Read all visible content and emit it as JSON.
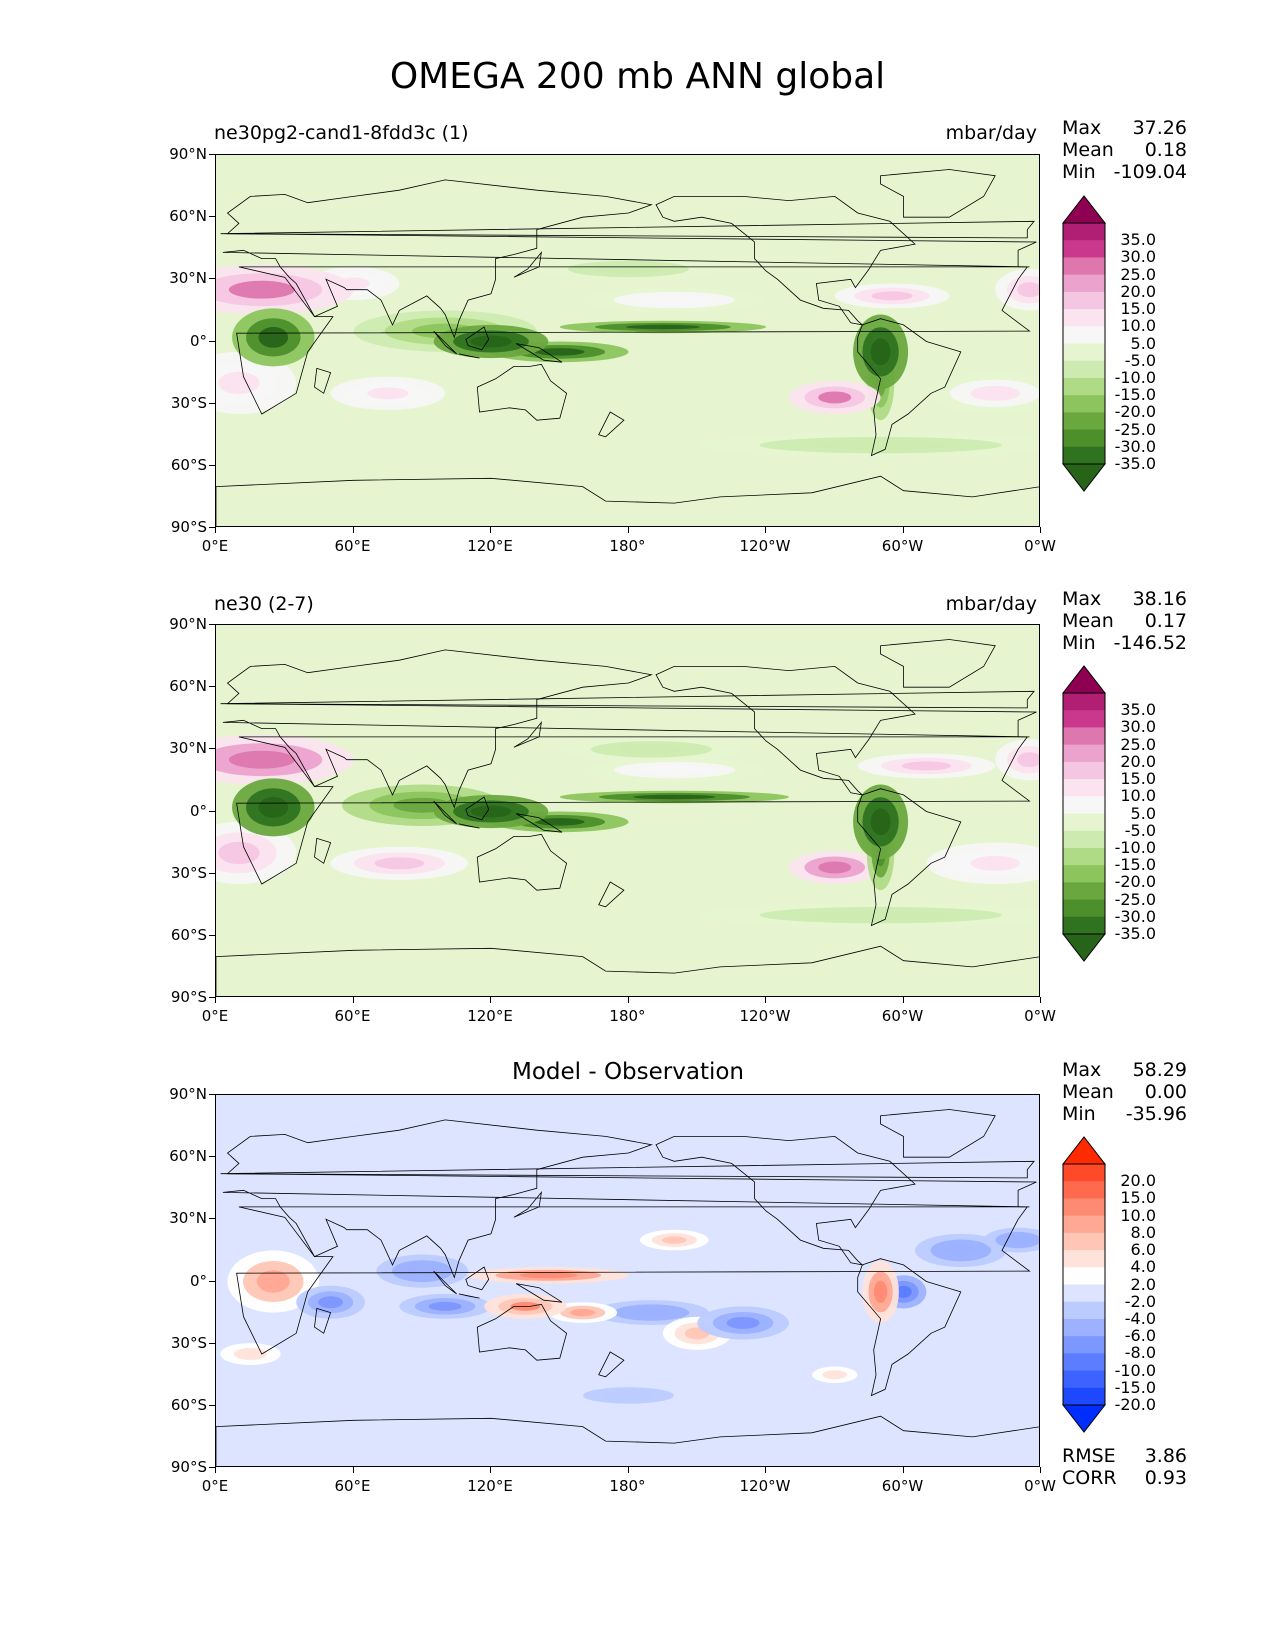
{
  "title": "OMEGA 200 mb ANN global",
  "lat_ticks": [
    "90°N",
    "60°N",
    "30°N",
    "0°",
    "30°S",
    "60°S",
    "90°S"
  ],
  "lon_ticks": [
    "0°E",
    "60°E",
    "120°E",
    "180°",
    "120°W",
    "60°W",
    "0°W"
  ],
  "stat_labels": {
    "max": "Max",
    "mean": "Mean",
    "min": "Min"
  },
  "panels": [
    {
      "title": "ne30pg2-cand1-8fdd3c (1)",
      "units": "mbar/day",
      "stats": {
        "max": "37.26",
        "mean": "0.18",
        "min": "-109.04"
      },
      "colorbar": {
        "ticks": [
          "35.0",
          "30.0",
          "25.0",
          "20.0",
          "15.0",
          "10.0",
          "5.0",
          "-5.0",
          "-10.0",
          "-15.0",
          "-20.0",
          "-25.0",
          "-30.0",
          "-35.0"
        ],
        "colors": [
          "#8e0152",
          "#b11f74",
          "#c9388d",
          "#de77ae",
          "#eba2cc",
          "#f5c6e1",
          "#fbe3ef",
          "#f7f7f7",
          "#e6f5d0",
          "#cdebb0",
          "#b0db86",
          "#8cc55d",
          "#6aa83f",
          "#4d8f2b",
          "#2f7320",
          "#276419"
        ]
      }
    },
    {
      "title": "ne30 (2-7)",
      "units": "mbar/day",
      "stats": {
        "max": "38.16",
        "mean": "0.17",
        "min": "-146.52"
      },
      "colorbar": {
        "ticks": [
          "35.0",
          "30.0",
          "25.0",
          "20.0",
          "15.0",
          "10.0",
          "5.0",
          "-5.0",
          "-10.0",
          "-15.0",
          "-20.0",
          "-25.0",
          "-30.0",
          "-35.0"
        ],
        "colors": [
          "#8e0152",
          "#b11f74",
          "#c9388d",
          "#de77ae",
          "#eba2cc",
          "#f5c6e1",
          "#fbe3ef",
          "#f7f7f7",
          "#e6f5d0",
          "#cdebb0",
          "#b0db86",
          "#8cc55d",
          "#6aa83f",
          "#4d8f2b",
          "#2f7320",
          "#276419"
        ]
      }
    },
    {
      "title": "Model - Observation",
      "units": "",
      "stats": {
        "max": "58.29",
        "mean": "0.00",
        "min": "-35.96"
      },
      "metrics": {
        "rmse_label": "RMSE",
        "rmse": "3.86",
        "corr_label": "CORR",
        "corr": "0.93"
      },
      "colorbar": {
        "ticks": [
          "20.0",
          "15.0",
          "10.0",
          "8.0",
          "6.0",
          "4.0",
          "2.0",
          "-2.0",
          "-4.0",
          "-6.0",
          "-8.0",
          "-10.0",
          "-15.0",
          "-20.0"
        ],
        "colors": [
          "#ff2a00",
          "#ff4a2a",
          "#ff6a4f",
          "#ff8a72",
          "#ffa894",
          "#ffc6b6",
          "#ffe3da",
          "#ffffff",
          "#dce4ff",
          "#bccbff",
          "#9cb1ff",
          "#7c97ff",
          "#5c7dff",
          "#3c63ff",
          "#1d48ff",
          "#002eff"
        ]
      }
    }
  ],
  "chart_data": [
    {
      "type": "heatmap",
      "title": "ne30pg2-cand1-8fdd3c (1)",
      "variable": "OMEGA 200 mb ANN global",
      "units": "mbar/day",
      "x_ticks": [
        "0°E",
        "60°E",
        "120°E",
        "180°",
        "120°W",
        "60°W",
        "0°W"
      ],
      "y_ticks": [
        "90°N",
        "60°N",
        "30°N",
        "0°",
        "30°S",
        "60°S",
        "90°S"
      ],
      "levels": [
        -35,
        -30,
        -25,
        -20,
        -15,
        -10,
        -5,
        5,
        10,
        15,
        20,
        25,
        30,
        35
      ],
      "stats": {
        "max": 37.26,
        "mean": 0.18,
        "min": -109.04
      },
      "features": [
        {
          "lon": 25,
          "lat": 2,
          "rx": 18,
          "ry": 14,
          "value": -40
        },
        {
          "lon": 100,
          "lat": 5,
          "rx": 40,
          "ry": 10,
          "value": -20
        },
        {
          "lon": 120,
          "lat": 0,
          "rx": 25,
          "ry": 8,
          "value": -45
        },
        {
          "lon": 150,
          "lat": -5,
          "rx": 30,
          "ry": 5,
          "value": -40
        },
        {
          "lon": 195,
          "lat": 7,
          "rx": 45,
          "ry": 3,
          "value": -40
        },
        {
          "lon": 290,
          "lat": -5,
          "rx": 12,
          "ry": 18,
          "value": -45
        },
        {
          "lon": 290,
          "lat": -20,
          "rx": 6,
          "ry": 18,
          "value": -25
        },
        {
          "lon": 180,
          "lat": 35,
          "rx": 40,
          "ry": 6,
          "value": -10
        },
        {
          "lon": 290,
          "lat": -50,
          "rx": 80,
          "ry": 6,
          "value": -8
        },
        {
          "lon": 20,
          "lat": 25,
          "rx": 40,
          "ry": 12,
          "value": 25
        },
        {
          "lon": 60,
          "lat": 28,
          "rx": 20,
          "ry": 8,
          "value": 12
        },
        {
          "lon": 355,
          "lat": 25,
          "rx": 15,
          "ry": 10,
          "value": 18
        },
        {
          "lon": 270,
          "lat": -27,
          "rx": 20,
          "ry": 8,
          "value": 25
        },
        {
          "lon": 10,
          "lat": -20,
          "rx": 25,
          "ry": 15,
          "value": 12
        },
        {
          "lon": 75,
          "lat": -25,
          "rx": 25,
          "ry": 8,
          "value": 12
        },
        {
          "lon": 200,
          "lat": 20,
          "rx": 40,
          "ry": 6,
          "value": 8
        },
        {
          "lon": 295,
          "lat": 22,
          "rx": 25,
          "ry": 6,
          "value": 15
        },
        {
          "lon": 340,
          "lat": -25,
          "rx": 30,
          "ry": 10,
          "value": 10
        }
      ]
    },
    {
      "type": "heatmap",
      "title": "ne30 (2-7)",
      "variable": "OMEGA 200 mb ANN global",
      "units": "mbar/day",
      "x_ticks": [
        "0°E",
        "60°E",
        "120°E",
        "180°",
        "120°W",
        "60°W",
        "0°W"
      ],
      "y_ticks": [
        "90°N",
        "60°N",
        "30°N",
        "0°",
        "30°S",
        "60°S",
        "90°S"
      ],
      "levels": [
        -35,
        -30,
        -25,
        -20,
        -15,
        -10,
        -5,
        5,
        10,
        15,
        20,
        25,
        30,
        35
      ],
      "stats": {
        "max": 38.16,
        "mean": 0.17,
        "min": -146.52
      },
      "features": [
        {
          "lon": 25,
          "lat": 2,
          "rx": 18,
          "ry": 14,
          "value": -45
        },
        {
          "lon": 90,
          "lat": 3,
          "rx": 35,
          "ry": 10,
          "value": -25
        },
        {
          "lon": 120,
          "lat": 0,
          "rx": 25,
          "ry": 8,
          "value": -45
        },
        {
          "lon": 150,
          "lat": -5,
          "rx": 30,
          "ry": 5,
          "value": -40
        },
        {
          "lon": 200,
          "lat": 7,
          "rx": 50,
          "ry": 3,
          "value": -40
        },
        {
          "lon": 290,
          "lat": -5,
          "rx": 12,
          "ry": 18,
          "value": -45
        },
        {
          "lon": 290,
          "lat": -20,
          "rx": 6,
          "ry": 18,
          "value": -30
        },
        {
          "lon": 190,
          "lat": 30,
          "rx": 40,
          "ry": 6,
          "value": -10
        },
        {
          "lon": 290,
          "lat": -50,
          "rx": 80,
          "ry": 6,
          "value": -8
        },
        {
          "lon": 20,
          "lat": 25,
          "rx": 40,
          "ry": 12,
          "value": 28
        },
        {
          "lon": 355,
          "lat": 25,
          "rx": 15,
          "ry": 10,
          "value": 18
        },
        {
          "lon": 270,
          "lat": -27,
          "rx": 20,
          "ry": 8,
          "value": 28
        },
        {
          "lon": 10,
          "lat": -20,
          "rx": 25,
          "ry": 15,
          "value": 15
        },
        {
          "lon": 80,
          "lat": -25,
          "rx": 30,
          "ry": 8,
          "value": 15
        },
        {
          "lon": 200,
          "lat": 20,
          "rx": 40,
          "ry": 6,
          "value": 8
        },
        {
          "lon": 310,
          "lat": 22,
          "rx": 30,
          "ry": 6,
          "value": 18
        },
        {
          "lon": 340,
          "lat": -25,
          "rx": 30,
          "ry": 10,
          "value": 12
        }
      ]
    },
    {
      "type": "heatmap",
      "title": "Model - Observation",
      "variable": "OMEGA 200 mb ANN global",
      "units": "mbar/day",
      "x_ticks": [
        "0°E",
        "60°E",
        "120°E",
        "180°",
        "120°W",
        "60°W",
        "0°W"
      ],
      "y_ticks": [
        "90°N",
        "60°N",
        "30°N",
        "0°",
        "30°S",
        "60°S",
        "90°S"
      ],
      "levels": [
        -20,
        -15,
        -10,
        -8,
        -6,
        -4,
        -2,
        2,
        4,
        6,
        8,
        10,
        15,
        20
      ],
      "stats": {
        "max": 58.29,
        "mean": 0.0,
        "min": -35.96
      },
      "rmse": 3.86,
      "corr": 0.93,
      "features": [
        {
          "lon": 25,
          "lat": 0,
          "rx": 20,
          "ry": 15,
          "value": 8
        },
        {
          "lon": 50,
          "lat": -10,
          "rx": 15,
          "ry": 8,
          "value": -8
        },
        {
          "lon": 90,
          "lat": 5,
          "rx": 20,
          "ry": 8,
          "value": -6
        },
        {
          "lon": 100,
          "lat": -12,
          "rx": 20,
          "ry": 6,
          "value": -8
        },
        {
          "lon": 145,
          "lat": 3,
          "rx": 35,
          "ry": 4,
          "value": 12
        },
        {
          "lon": 135,
          "lat": -12,
          "rx": 18,
          "ry": 6,
          "value": 10
        },
        {
          "lon": 160,
          "lat": -15,
          "rx": 15,
          "ry": 5,
          "value": 8
        },
        {
          "lon": 190,
          "lat": -15,
          "rx": 25,
          "ry": 6,
          "value": -6
        },
        {
          "lon": 210,
          "lat": -25,
          "rx": 15,
          "ry": 8,
          "value": 6
        },
        {
          "lon": 230,
          "lat": -20,
          "rx": 20,
          "ry": 8,
          "value": -8
        },
        {
          "lon": 290,
          "lat": -5,
          "rx": 8,
          "ry": 15,
          "value": 12
        },
        {
          "lon": 300,
          "lat": -5,
          "rx": 10,
          "ry": 8,
          "value": -10
        },
        {
          "lon": 325,
          "lat": 15,
          "rx": 20,
          "ry": 8,
          "value": -6
        },
        {
          "lon": 350,
          "lat": 20,
          "rx": 15,
          "ry": 6,
          "value": -6
        },
        {
          "lon": 180,
          "lat": -55,
          "rx": 30,
          "ry": 6,
          "value": -4
        },
        {
          "lon": 15,
          "lat": -35,
          "rx": 20,
          "ry": 8,
          "value": 4
        },
        {
          "lon": 270,
          "lat": -45,
          "rx": 15,
          "ry": 6,
          "value": 4
        },
        {
          "lon": 200,
          "lat": 20,
          "rx": 15,
          "ry": 5,
          "value": 6
        }
      ]
    }
  ]
}
